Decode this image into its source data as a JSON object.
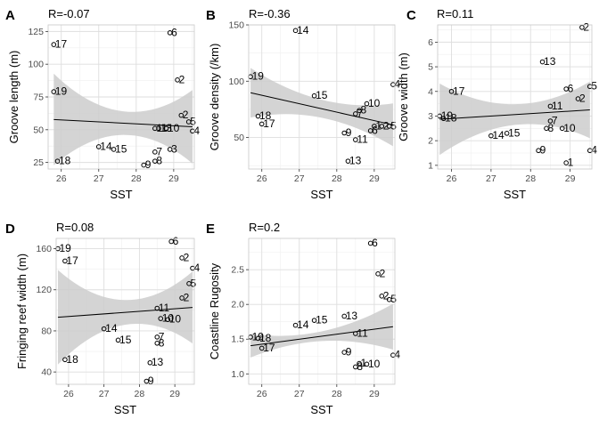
{
  "chart_data": [
    {
      "type": "scatter",
      "panel": "A",
      "annotation": "R=-0.07",
      "xlabel": "SST",
      "ylabel": "Groove length (m)",
      "xlim": [
        25.65,
        29.55
      ],
      "ylim": [
        20,
        130
      ],
      "xticks": [
        26,
        27,
        28,
        29
      ],
      "yticks": [
        25,
        50,
        75,
        100,
        125
      ],
      "fit": {
        "slope": -1.5,
        "intercept": 96.5,
        "ci_half_width": [
          35,
          9,
          28
        ]
      },
      "points": [
        {
          "label": "17",
          "x": 25.8,
          "y": 115
        },
        {
          "label": "19",
          "x": 25.8,
          "y": 79
        },
        {
          "label": "18",
          "x": 25.9,
          "y": 26
        },
        {
          "label": "14",
          "x": 27.0,
          "y": 37
        },
        {
          "label": "15",
          "x": 27.4,
          "y": 35
        },
        {
          "label": "9",
          "x": 28.2,
          "y": 23
        },
        {
          "label": "7",
          "x": 28.5,
          "y": 33
        },
        {
          "label": "8",
          "x": 28.5,
          "y": 26
        },
        {
          "label": "11",
          "x": 28.5,
          "y": 51
        },
        {
          "label": "13",
          "x": 28.6,
          "y": 51
        },
        {
          "label": "10",
          "x": 28.8,
          "y": 51
        },
        {
          "label": "3",
          "x": 28.9,
          "y": 35
        },
        {
          "label": "6",
          "x": 28.9,
          "y": 124
        },
        {
          "label": "2",
          "x": 29.1,
          "y": 88
        },
        {
          "label": "2",
          "x": 29.2,
          "y": 61
        },
        {
          "label": "5",
          "x": 29.4,
          "y": 56
        },
        {
          "label": "4",
          "x": 29.5,
          "y": 49
        }
      ]
    },
    {
      "type": "scatter",
      "panel": "B",
      "annotation": "R=-0.36",
      "xlabel": "SST",
      "ylabel": "Groove density (/km)",
      "xlim": [
        25.65,
        29.55
      ],
      "ylim": [
        22,
        150
      ],
      "xticks": [
        26,
        27,
        28,
        29
      ],
      "yticks": [
        50,
        100,
        150
      ],
      "fit": {
        "slope": -7.5,
        "intercept": 282.5,
        "ci_half_width": [
          22,
          8,
          19
        ]
      },
      "points": [
        {
          "label": "19",
          "x": 25.7,
          "y": 104
        },
        {
          "label": "18",
          "x": 25.9,
          "y": 69
        },
        {
          "label": "17",
          "x": 26.0,
          "y": 62
        },
        {
          "label": "14",
          "x": 26.9,
          "y": 145
        },
        {
          "label": "15",
          "x": 27.4,
          "y": 87
        },
        {
          "label": "9",
          "x": 28.2,
          "y": 54
        },
        {
          "label": "13",
          "x": 28.3,
          "y": 29
        },
        {
          "label": "11",
          "x": 28.5,
          "y": 48
        },
        {
          "label": "8",
          "x": 28.6,
          "y": 74
        },
        {
          "label": "7",
          "x": 28.5,
          "y": 71
        },
        {
          "label": "10",
          "x": 28.8,
          "y": 80
        },
        {
          "label": "6",
          "x": 28.9,
          "y": 56
        },
        {
          "label": "1",
          "x": 29.0,
          "y": 60
        },
        {
          "label": "2",
          "x": 29.2,
          "y": 60
        },
        {
          "label": "5",
          "x": 29.4,
          "y": 60
        },
        {
          "label": "4",
          "x": 29.5,
          "y": 97
        }
      ]
    },
    {
      "type": "scatter",
      "panel": "C",
      "annotation": "R=0.11",
      "xlabel": "SST",
      "ylabel": "Groove width (m)",
      "xlim": [
        25.65,
        29.55
      ],
      "ylim": [
        0.85,
        6.7
      ],
      "xticks": [
        26,
        27,
        28,
        29
      ],
      "yticks": [
        1,
        2,
        3,
        4,
        5,
        6
      ],
      "fit": {
        "slope": 0.1,
        "intercept": 0.3,
        "ci_half_width": [
          1.45,
          0.42,
          1.15
        ]
      },
      "points": [
        {
          "label": "19",
          "x": 25.7,
          "y": 3.0
        },
        {
          "label": "18",
          "x": 25.8,
          "y": 2.9
        },
        {
          "label": "17",
          "x": 26.0,
          "y": 4.0
        },
        {
          "label": "14",
          "x": 27.0,
          "y": 2.2
        },
        {
          "label": "15",
          "x": 27.4,
          "y": 2.3
        },
        {
          "label": "9",
          "x": 28.2,
          "y": 1.6
        },
        {
          "label": "13",
          "x": 28.3,
          "y": 5.2
        },
        {
          "label": "11",
          "x": 28.5,
          "y": 3.4
        },
        {
          "label": "7",
          "x": 28.5,
          "y": 2.8
        },
        {
          "label": "8",
          "x": 28.4,
          "y": 2.5
        },
        {
          "label": "10",
          "x": 28.8,
          "y": 2.5
        },
        {
          "label": "1",
          "x": 28.9,
          "y": 1.1
        },
        {
          "label": "6",
          "x": 28.9,
          "y": 4.1
        },
        {
          "label": "2",
          "x": 29.2,
          "y": 3.7
        },
        {
          "label": "2",
          "x": 29.3,
          "y": 6.6
        },
        {
          "label": "5",
          "x": 29.5,
          "y": 4.2
        },
        {
          "label": "4",
          "x": 29.5,
          "y": 1.6
        }
      ]
    },
    {
      "type": "scatter",
      "panel": "D",
      "annotation": "R=0.08",
      "xlabel": "SST",
      "ylabel": "Fringing reef width (m)",
      "xlim": [
        25.65,
        29.55
      ],
      "ylim": [
        28,
        170
      ],
      "xticks": [
        26,
        27,
        28,
        29
      ],
      "yticks": [
        40,
        80,
        120,
        160
      ],
      "fit": {
        "slope": 2.5,
        "intercept": 29.0,
        "ci_half_width": [
          46,
          12,
          35
        ]
      },
      "points": [
        {
          "label": "19",
          "x": 25.7,
          "y": 160
        },
        {
          "label": "17",
          "x": 25.9,
          "y": 148
        },
        {
          "label": "18",
          "x": 25.9,
          "y": 52
        },
        {
          "label": "14",
          "x": 27.0,
          "y": 82
        },
        {
          "label": "15",
          "x": 27.4,
          "y": 71
        },
        {
          "label": "9",
          "x": 28.2,
          "y": 31
        },
        {
          "label": "13",
          "x": 28.3,
          "y": 49
        },
        {
          "label": "7",
          "x": 28.5,
          "y": 74
        },
        {
          "label": "8",
          "x": 28.5,
          "y": 68
        },
        {
          "label": "11",
          "x": 28.5,
          "y": 102
        },
        {
          "label": "10",
          "x": 28.6,
          "y": 92
        },
        {
          "label": "10",
          "x": 28.8,
          "y": 91
        },
        {
          "label": "6",
          "x": 28.9,
          "y": 167
        },
        {
          "label": "2",
          "x": 29.2,
          "y": 151
        },
        {
          "label": "2",
          "x": 29.2,
          "y": 112
        },
        {
          "label": "5",
          "x": 29.4,
          "y": 126
        },
        {
          "label": "4",
          "x": 29.5,
          "y": 141
        }
      ]
    },
    {
      "type": "scatter",
      "panel": "E",
      "annotation": "R=0.2",
      "xlabel": "SST",
      "ylabel": "Coastline Rugosity",
      "xlim": [
        25.65,
        29.55
      ],
      "ylim": [
        0.85,
        2.95
      ],
      "xticks": [
        26,
        27,
        28,
        29
      ],
      "yticks": [
        1.0,
        1.5,
        2.0,
        2.5
      ],
      "fit": {
        "slope": 0.072,
        "intercept": -0.445,
        "ci_half_width": [
          0.17,
          0.07,
          0.33
        ]
      },
      "points": [
        {
          "label": "19",
          "x": 25.7,
          "y": 1.53
        },
        {
          "label": "18",
          "x": 25.9,
          "y": 1.51
        },
        {
          "label": "17",
          "x": 26.0,
          "y": 1.37
        },
        {
          "label": "14",
          "x": 26.9,
          "y": 1.7
        },
        {
          "label": "15",
          "x": 27.4,
          "y": 1.77
        },
        {
          "label": "13",
          "x": 28.2,
          "y": 1.83
        },
        {
          "label": "9",
          "x": 28.2,
          "y": 1.31
        },
        {
          "label": "11",
          "x": 28.5,
          "y": 1.58
        },
        {
          "label": "8",
          "x": 28.5,
          "y": 1.1
        },
        {
          "label": "1",
          "x": 28.6,
          "y": 1.15
        },
        {
          "label": "10",
          "x": 28.8,
          "y": 1.14
        },
        {
          "label": "6",
          "x": 28.9,
          "y": 2.88
        },
        {
          "label": "2",
          "x": 29.1,
          "y": 2.44
        },
        {
          "label": "2",
          "x": 29.2,
          "y": 2.12
        },
        {
          "label": "5",
          "x": 29.4,
          "y": 2.07
        },
        {
          "label": "4",
          "x": 29.5,
          "y": 1.27
        }
      ]
    }
  ]
}
